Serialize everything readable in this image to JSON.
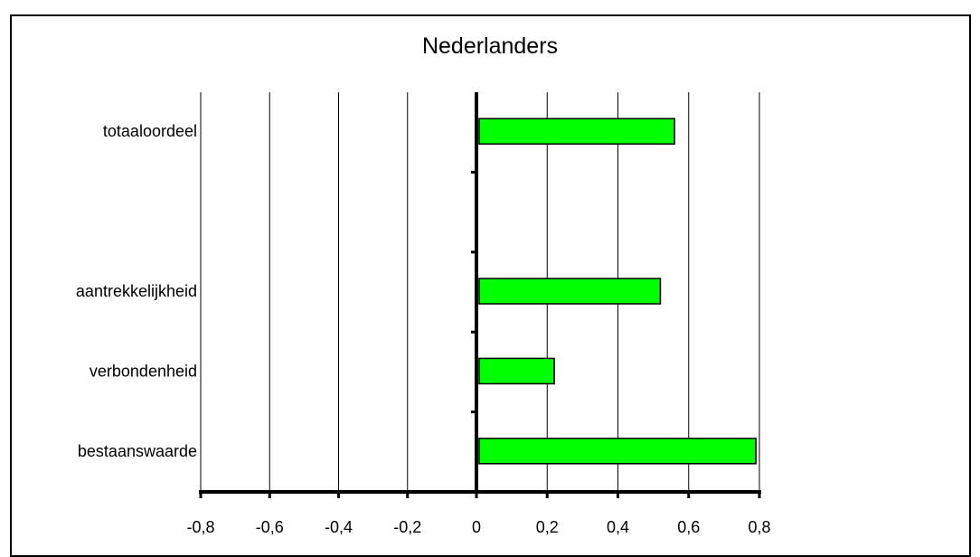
{
  "chart_data": {
    "type": "bar",
    "orientation": "horizontal",
    "title": "Nederlanders",
    "xlabel": "",
    "ylabel": "",
    "xlim": [
      -0.8,
      0.8
    ],
    "x_ticks": [
      "-0,8",
      "-0,6",
      "-0,4",
      "-0,2",
      "0",
      "0,2",
      "0,4",
      "0,6",
      "0,8"
    ],
    "grid": "vertical",
    "legend": "none",
    "bar_color": "#00ff00",
    "categories": [
      "totaaloordeel",
      "",
      "aantrekkelijkheid",
      "verbondenheid",
      "bestaanswaarde"
    ],
    "values": [
      0.56,
      null,
      0.52,
      0.22,
      0.79
    ]
  }
}
